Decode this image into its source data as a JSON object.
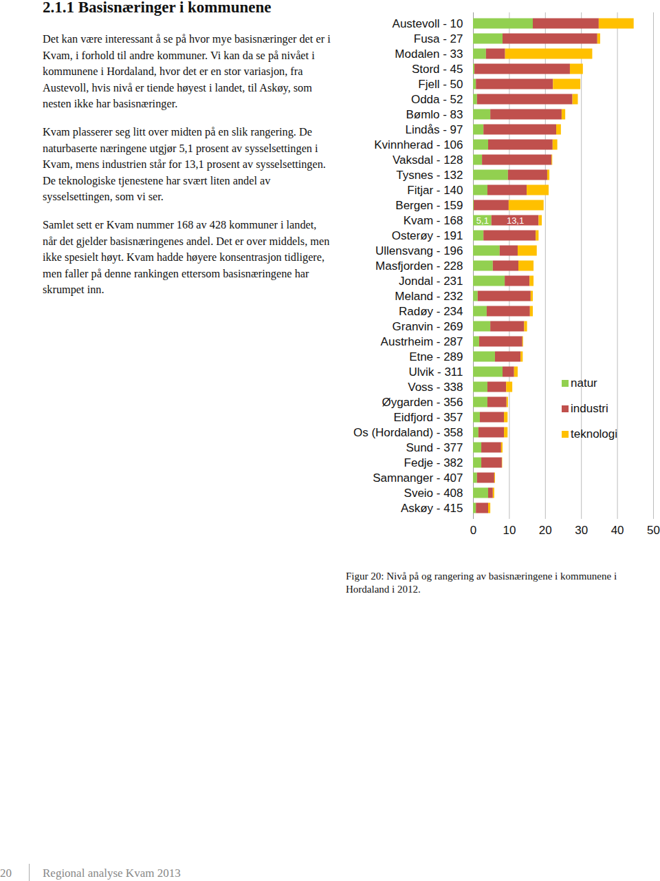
{
  "document": {
    "heading": "2.1.1 Basisnæringer i kommunene",
    "paragraphs": [
      "Det kan være interessant å se på hvor mye basisnæringer det er i Kvam, i forhold til andre kommuner. Vi kan da se på nivået i kommunene i Hordaland, hvor det er en stor variasjon, fra Austevoll, hvis nivå er tiende høyest i landet, til Askøy, som nesten ikke har basisnæringer.",
      "Kvam plasserer seg litt over midten på en slik rangering. De naturbaserte næringene utgjør 5,1 prosent av sysselsettingen i Kvam, mens industrien står for 13,1 prosent av sysselsettingen. De teknologiske tjenestene har svært liten andel av sysselsettingen, som vi ser.",
      "Samlet sett er Kvam nummer 168 av 428 kommuner i landet, når det gjelder basisnæringenes andel. Det er over middels, men ikke spesielt høyt. Kvam hadde høyere konsentrasjon tidligere, men faller på denne rankingen ettersom basisnæringene har skrumpet inn."
    ],
    "caption": "Figur 20: Nivå på og rangering av basisnæringene i kommunene i Hordaland i 2012.",
    "footer": {
      "page": "20",
      "text": "Regional analyse Kvam 2013"
    }
  },
  "chart_data": {
    "type": "bar",
    "orientation": "horizontal",
    "stacked": true,
    "grid": true,
    "legend": "right",
    "categories": [
      "Austevoll - 10",
      "Fusa - 27",
      "Modalen - 33",
      "Stord - 45",
      "Fjell - 50",
      "Odda - 52",
      "Bømlo - 83",
      "Lindås - 97",
      "Kvinnherad - 106",
      "Vaksdal - 128",
      "Tysnes - 132",
      "Fitjar - 140",
      "Bergen - 159",
      "Kvam - 168",
      "Osterøy - 191",
      "Ullensvang - 196",
      "Masfjorden - 228",
      "Jondal - 231",
      "Meland - 232",
      "Radøy - 234",
      "Granvin - 269",
      "Austrheim - 287",
      "Etne - 289",
      "Ulvik - 311",
      "Voss - 338",
      "Øygarden - 356",
      "Eidfjord - 357",
      "Os (Hordaland) - 358",
      "Sund - 377",
      "Fedje - 382",
      "Samnanger - 407",
      "Sveio - 408",
      "Askøy - 415"
    ],
    "series": [
      {
        "name": "natur",
        "color": "#92d050",
        "values": [
          16.6,
          8.2,
          3.6,
          0.4,
          0.8,
          1.1,
          4.8,
          2.9,
          4.2,
          2.5,
          9.7,
          4.0,
          0.2,
          5.1,
          2.9,
          7.4,
          5.5,
          8.8,
          1.3,
          3.8,
          4.8,
          1.7,
          6.1,
          8.2,
          4.0,
          4.0,
          1.9,
          1.5,
          2.3,
          2.3,
          1.1,
          4.2,
          0.8
        ],
        "value_labels": [
          null,
          null,
          null,
          null,
          null,
          null,
          null,
          null,
          null,
          null,
          null,
          null,
          null,
          "5,1",
          null,
          null,
          null,
          null,
          null,
          null,
          null,
          null,
          null,
          null,
          null,
          null,
          null,
          null,
          null,
          null,
          null,
          null,
          null
        ]
      },
      {
        "name": "industri",
        "color": "#c0504d",
        "values": [
          18.3,
          26.3,
          5.3,
          26.5,
          21.4,
          26.5,
          19.8,
          20.2,
          17.9,
          19.3,
          10.9,
          10.9,
          9.7,
          13.1,
          14.5,
          5.0,
          7.1,
          6.9,
          14.7,
          12.0,
          9.4,
          12.0,
          7.1,
          3.2,
          5.2,
          5.3,
          6.7,
          7.1,
          5.5,
          5.7,
          4.8,
          1.3,
          3.4
        ],
        "value_labels": [
          null,
          null,
          null,
          null,
          null,
          null,
          null,
          null,
          null,
          null,
          null,
          null,
          null,
          "13,1",
          null,
          null,
          null,
          null,
          null,
          null,
          null,
          null,
          null,
          null,
          null,
          null,
          null,
          null,
          null,
          null,
          null,
          null,
          null
        ]
      },
      {
        "name": "teknologi",
        "color": "#ffc000",
        "values": [
          9.7,
          0.8,
          24.2,
          3.6,
          7.6,
          1.5,
          1.0,
          1.3,
          1.3,
          0.2,
          0.6,
          6.1,
          9.7,
          0.9,
          0.8,
          5.3,
          4.2,
          1.1,
          0.6,
          0.8,
          0.8,
          0.2,
          0.6,
          1.0,
          1.7,
          0.4,
          1.0,
          1.0,
          0.4,
          0.1,
          0.2,
          0.4,
          0.6
        ]
      }
    ],
    "xlim": [
      0,
      50
    ],
    "xticks": [
      0,
      10,
      20,
      30,
      40,
      50
    ]
  }
}
